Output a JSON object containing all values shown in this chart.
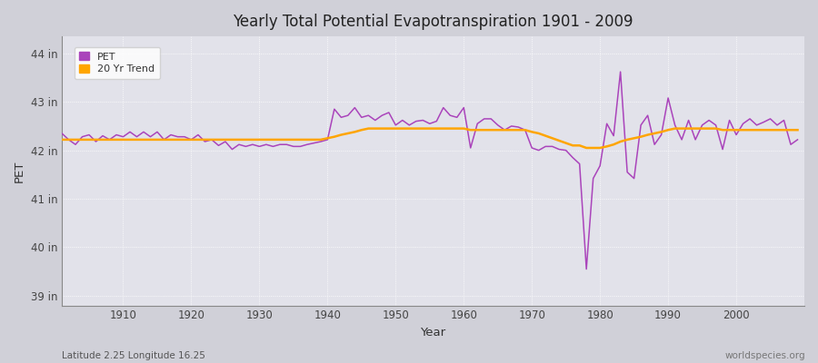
{
  "title": "Yearly Total Potential Evapotranspiration 1901 - 2009",
  "xlabel": "Year",
  "ylabel": "PET",
  "subtitle_left": "Latitude 2.25 Longitude 16.25",
  "subtitle_right": "worldspecies.org",
  "pet_color": "#AA44BB",
  "trend_color": "#FFA500",
  "fig_bg_color": "#D8D8DF",
  "plot_bg_color": "#E0E0E8",
  "ylim": [
    38.8,
    44.35
  ],
  "xlim": [
    1901,
    2010
  ],
  "yticks": [
    39,
    40,
    41,
    42,
    43,
    44
  ],
  "ytick_labels": [
    "39 in",
    "40 in",
    "41 in",
    "42 in",
    "43 in",
    "44 in"
  ],
  "xticks": [
    1910,
    1920,
    1930,
    1940,
    1950,
    1960,
    1970,
    1980,
    1990,
    2000
  ],
  "years": [
    1901,
    1902,
    1903,
    1904,
    1905,
    1906,
    1907,
    1908,
    1909,
    1910,
    1911,
    1912,
    1913,
    1914,
    1915,
    1916,
    1917,
    1918,
    1919,
    1920,
    1921,
    1922,
    1923,
    1924,
    1925,
    1926,
    1927,
    1928,
    1929,
    1930,
    1931,
    1932,
    1933,
    1934,
    1935,
    1936,
    1937,
    1938,
    1939,
    1940,
    1941,
    1942,
    1943,
    1944,
    1945,
    1946,
    1947,
    1948,
    1949,
    1950,
    1951,
    1952,
    1953,
    1954,
    1955,
    1956,
    1957,
    1958,
    1959,
    1960,
    1961,
    1962,
    1963,
    1964,
    1965,
    1966,
    1967,
    1968,
    1969,
    1970,
    1971,
    1972,
    1973,
    1974,
    1975,
    1976,
    1977,
    1978,
    1979,
    1980,
    1981,
    1982,
    1983,
    1984,
    1985,
    1986,
    1987,
    1988,
    1989,
    1990,
    1991,
    1992,
    1993,
    1994,
    1995,
    1996,
    1997,
    1998,
    1999,
    2000,
    2001,
    2002,
    2003,
    2004,
    2005,
    2006,
    2007,
    2008,
    2009
  ],
  "pet_values": [
    42.35,
    42.22,
    42.12,
    42.28,
    42.32,
    42.18,
    42.3,
    42.22,
    42.32,
    42.28,
    42.38,
    42.28,
    42.38,
    42.28,
    42.38,
    42.22,
    42.32,
    42.28,
    42.28,
    42.22,
    42.32,
    42.18,
    42.22,
    42.1,
    42.18,
    42.02,
    42.12,
    42.08,
    42.12,
    42.08,
    42.12,
    42.08,
    42.12,
    42.12,
    42.08,
    42.08,
    42.12,
    42.15,
    42.18,
    42.22,
    42.85,
    42.68,
    42.72,
    42.88,
    42.68,
    42.72,
    42.62,
    42.72,
    42.78,
    42.52,
    42.62,
    42.52,
    42.6,
    42.62,
    42.55,
    42.6,
    42.88,
    42.72,
    42.68,
    42.88,
    42.05,
    42.55,
    42.65,
    42.65,
    42.52,
    42.42,
    42.5,
    42.48,
    42.42,
    42.05,
    42.0,
    42.08,
    42.08,
    42.02,
    42.0,
    41.85,
    41.72,
    39.55,
    41.42,
    41.68,
    42.55,
    42.3,
    43.62,
    41.55,
    41.42,
    42.52,
    42.72,
    42.12,
    42.32,
    43.08,
    42.52,
    42.22,
    42.62,
    42.22,
    42.52,
    42.62,
    42.52,
    42.02,
    42.62,
    42.32,
    42.55,
    42.65,
    42.52,
    42.58,
    42.65,
    42.52,
    42.62,
    42.12,
    42.22
  ],
  "trend_values": [
    42.22,
    42.22,
    42.22,
    42.22,
    42.22,
    42.22,
    42.22,
    42.22,
    42.22,
    42.22,
    42.22,
    42.22,
    42.22,
    42.22,
    42.22,
    42.22,
    42.22,
    42.22,
    42.22,
    42.22,
    42.22,
    42.22,
    42.22,
    42.22,
    42.22,
    42.22,
    42.22,
    42.22,
    42.22,
    42.22,
    42.22,
    42.22,
    42.22,
    42.22,
    42.22,
    42.22,
    42.22,
    42.22,
    42.22,
    42.25,
    42.28,
    42.32,
    42.35,
    42.38,
    42.42,
    42.45,
    42.45,
    42.45,
    42.45,
    42.45,
    42.45,
    42.45,
    42.45,
    42.45,
    42.45,
    42.45,
    42.45,
    42.45,
    42.45,
    42.45,
    42.42,
    42.42,
    42.42,
    42.42,
    42.42,
    42.42,
    42.42,
    42.42,
    42.42,
    42.38,
    42.35,
    42.3,
    42.25,
    42.2,
    42.15,
    42.1,
    42.1,
    42.05,
    42.05,
    42.05,
    42.08,
    42.12,
    42.18,
    42.22,
    42.25,
    42.28,
    42.32,
    42.35,
    42.38,
    42.42,
    42.45,
    42.45,
    42.45,
    42.45,
    42.45,
    42.45,
    42.45,
    42.42,
    42.42,
    42.42,
    42.42,
    42.42,
    42.42,
    42.42,
    42.42,
    42.42,
    42.42,
    42.42,
    42.42
  ]
}
